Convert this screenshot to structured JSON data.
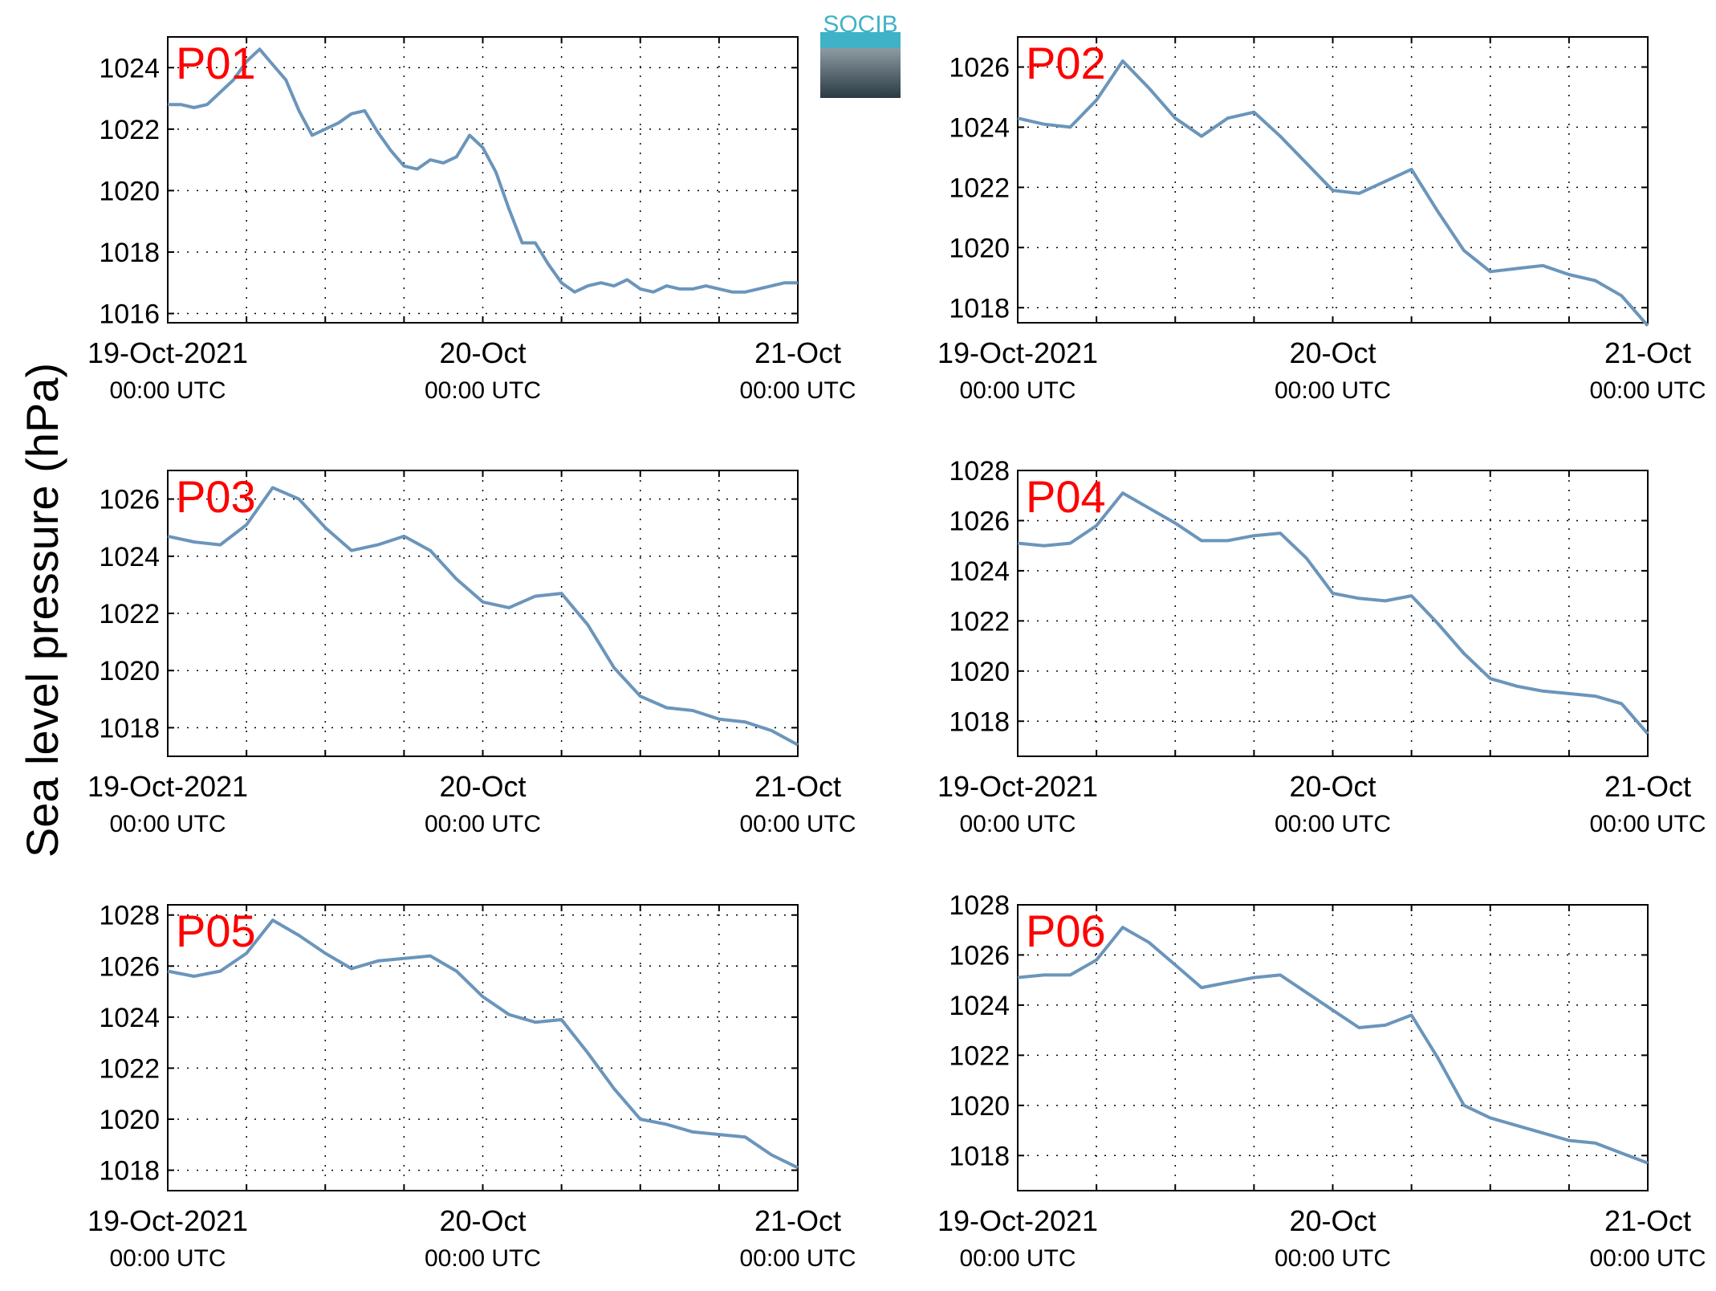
{
  "ylabel": "Sea level pressure (hPa)",
  "logo": {
    "text": "SOCIB",
    "colors": [
      "#3fb2c8",
      "#8a9aa3",
      "#2a3a44"
    ]
  },
  "colors": {
    "line": "#6b95bb",
    "panel_label": "#ff0000",
    "grid": "#000000"
  },
  "chart_data": [
    {
      "type": "line",
      "panel": "P01",
      "title": "",
      "ylim": [
        1015.7,
        1025.0
      ],
      "yticks": [
        1016,
        1018,
        1020,
        1022,
        1024
      ],
      "xticks": [
        {
          "x": 0,
          "line1": "19-Oct-2021",
          "line2": "00:00 UTC"
        },
        {
          "x": 24,
          "line1": "20-Oct",
          "line2": "00:00 UTC"
        },
        {
          "x": 48,
          "line1": "21-Oct",
          "line2": "00:00 UTC"
        }
      ],
      "xlim": [
        0,
        48
      ],
      "grid": true,
      "x": [
        0,
        1,
        2,
        3,
        4,
        5,
        6,
        7,
        8,
        9,
        10,
        11,
        12,
        13,
        14,
        15,
        16,
        17,
        18,
        19,
        20,
        21,
        22,
        23,
        24,
        25,
        26,
        27,
        28,
        29,
        30,
        31,
        32,
        33,
        34,
        35,
        36,
        37,
        38,
        39,
        40,
        41,
        42,
        43,
        44,
        45,
        46,
        47,
        48
      ],
      "series": [
        {
          "values": [
            1022.8,
            1022.8,
            1022.7,
            1022.8,
            1023.2,
            1023.6,
            1024.2,
            1024.6,
            1024.1,
            1023.6,
            1022.6,
            1021.8,
            1022.0,
            1022.2,
            1022.5,
            1022.6,
            1021.9,
            1021.3,
            1020.8,
            1020.7,
            1021.0,
            1020.9,
            1021.1,
            1021.8,
            1021.4,
            1020.6,
            1019.4,
            1018.3,
            1018.3,
            1017.6,
            1017.0,
            1016.7,
            1016.9,
            1017.0,
            1016.9,
            1017.1,
            1016.8,
            1016.7,
            1016.9,
            1016.8,
            1016.8,
            1016.9,
            1016.8,
            1016.7,
            1016.7,
            1016.8,
            1016.9,
            1017.0,
            1017.0
          ]
        }
      ]
    },
    {
      "type": "line",
      "panel": "P02",
      "title": "",
      "ylim": [
        1017.5,
        1027.0
      ],
      "yticks": [
        1018,
        1020,
        1022,
        1024,
        1026
      ],
      "xticks": [
        {
          "x": 0,
          "line1": "19-Oct-2021",
          "line2": "00:00 UTC"
        },
        {
          "x": 24,
          "line1": "20-Oct",
          "line2": "00:00 UTC"
        },
        {
          "x": 48,
          "line1": "21-Oct",
          "line2": "00:00 UTC"
        }
      ],
      "xlim": [
        0,
        48
      ],
      "grid": true,
      "x": [
        0,
        2,
        4,
        6,
        8,
        10,
        12,
        14,
        16,
        18,
        20,
        22,
        24,
        26,
        28,
        30,
        32,
        34,
        36,
        38,
        40,
        42,
        44,
        46,
        48
      ],
      "series": [
        {
          "values": [
            1024.3,
            1024.1,
            1024.0,
            1024.9,
            1026.2,
            1025.3,
            1024.3,
            1023.7,
            1024.3,
            1024.5,
            1023.7,
            1022.8,
            1021.9,
            1021.8,
            1022.2,
            1022.6,
            1021.2,
            1019.9,
            1019.2,
            1019.3,
            1019.4,
            1019.1,
            1018.9,
            1018.4,
            1017.4
          ]
        }
      ]
    },
    {
      "type": "line",
      "panel": "P03",
      "title": "",
      "ylim": [
        1017.0,
        1027.0
      ],
      "yticks": [
        1018,
        1020,
        1022,
        1024,
        1026
      ],
      "xticks": [
        {
          "x": 0,
          "line1": "19-Oct-2021",
          "line2": "00:00 UTC"
        },
        {
          "x": 24,
          "line1": "20-Oct",
          "line2": "00:00 UTC"
        },
        {
          "x": 48,
          "line1": "21-Oct",
          "line2": "00:00 UTC"
        }
      ],
      "xlim": [
        0,
        48
      ],
      "grid": true,
      "x": [
        0,
        2,
        4,
        6,
        8,
        10,
        12,
        14,
        16,
        18,
        20,
        22,
        24,
        26,
        28,
        30,
        32,
        34,
        36,
        38,
        40,
        42,
        44,
        46,
        48
      ],
      "series": [
        {
          "values": [
            1024.7,
            1024.5,
            1024.4,
            1025.1,
            1026.4,
            1026.0,
            1025.0,
            1024.2,
            1024.4,
            1024.7,
            1024.2,
            1023.2,
            1022.4,
            1022.2,
            1022.6,
            1022.7,
            1021.6,
            1020.1,
            1019.1,
            1018.7,
            1018.6,
            1018.3,
            1018.2,
            1017.9,
            1017.4
          ]
        }
      ]
    },
    {
      "type": "line",
      "panel": "P04",
      "title": "",
      "ylim": [
        1016.6,
        1028.0
      ],
      "yticks": [
        1018,
        1020,
        1022,
        1024,
        1026,
        1028
      ],
      "xticks": [
        {
          "x": 0,
          "line1": "19-Oct-2021",
          "line2": "00:00 UTC"
        },
        {
          "x": 24,
          "line1": "20-Oct",
          "line2": "00:00 UTC"
        },
        {
          "x": 48,
          "line1": "21-Oct",
          "line2": "00:00 UTC"
        }
      ],
      "xlim": [
        0,
        48
      ],
      "grid": true,
      "x": [
        0,
        2,
        4,
        6,
        8,
        10,
        12,
        14,
        16,
        18,
        20,
        22,
        24,
        26,
        28,
        30,
        32,
        34,
        36,
        38,
        40,
        42,
        44,
        46,
        48
      ],
      "series": [
        {
          "values": [
            1025.1,
            1025.0,
            1025.1,
            1025.8,
            1027.1,
            1026.5,
            1025.9,
            1025.2,
            1025.2,
            1025.4,
            1025.5,
            1024.5,
            1023.1,
            1022.9,
            1022.8,
            1023.0,
            1021.9,
            1020.7,
            1019.7,
            1019.4,
            1019.2,
            1019.1,
            1019.0,
            1018.7,
            1017.5
          ]
        }
      ]
    },
    {
      "type": "line",
      "panel": "P05",
      "title": "",
      "ylim": [
        1017.2,
        1028.4
      ],
      "yticks": [
        1018,
        1020,
        1022,
        1024,
        1026,
        1028
      ],
      "xticks": [
        {
          "x": 0,
          "line1": "19-Oct-2021",
          "line2": "00:00 UTC"
        },
        {
          "x": 24,
          "line1": "20-Oct",
          "line2": "00:00 UTC"
        },
        {
          "x": 48,
          "line1": "21-Oct",
          "line2": "00:00 UTC"
        }
      ],
      "xlim": [
        0,
        48
      ],
      "grid": true,
      "x": [
        0,
        2,
        4,
        6,
        8,
        10,
        12,
        14,
        16,
        18,
        20,
        22,
        24,
        26,
        28,
        30,
        32,
        34,
        36,
        38,
        40,
        42,
        44,
        46,
        48
      ],
      "series": [
        {
          "values": [
            1025.8,
            1025.6,
            1025.8,
            1026.5,
            1027.8,
            1027.2,
            1026.5,
            1025.9,
            1026.2,
            1026.3,
            1026.4,
            1025.8,
            1024.8,
            1024.1,
            1023.8,
            1023.9,
            1022.6,
            1021.2,
            1020.0,
            1019.8,
            1019.5,
            1019.4,
            1019.3,
            1018.6,
            1018.1
          ]
        }
      ]
    },
    {
      "type": "line",
      "panel": "P06",
      "title": "",
      "ylim": [
        1016.6,
        1028.0
      ],
      "yticks": [
        1018,
        1020,
        1022,
        1024,
        1026,
        1028
      ],
      "xticks": [
        {
          "x": 0,
          "line1": "19-Oct-2021",
          "line2": "00:00 UTC"
        },
        {
          "x": 24,
          "line1": "20-Oct",
          "line2": "00:00 UTC"
        },
        {
          "x": 48,
          "line1": "21-Oct",
          "line2": "00:00 UTC"
        }
      ],
      "xlim": [
        0,
        48
      ],
      "grid": true,
      "x": [
        0,
        2,
        4,
        6,
        8,
        10,
        12,
        14,
        16,
        18,
        20,
        22,
        24,
        26,
        28,
        30,
        32,
        34,
        36,
        38,
        40,
        42,
        44,
        46,
        48
      ],
      "series": [
        {
          "values": [
            1025.1,
            1025.2,
            1025.2,
            1025.8,
            1027.1,
            1026.5,
            1025.6,
            1024.7,
            1024.9,
            1025.1,
            1025.2,
            1024.5,
            1023.8,
            1023.1,
            1023.2,
            1023.6,
            1021.9,
            1020.0,
            1019.5,
            1019.2,
            1018.9,
            1018.6,
            1018.5,
            1018.1,
            1017.7
          ]
        }
      ]
    }
  ]
}
